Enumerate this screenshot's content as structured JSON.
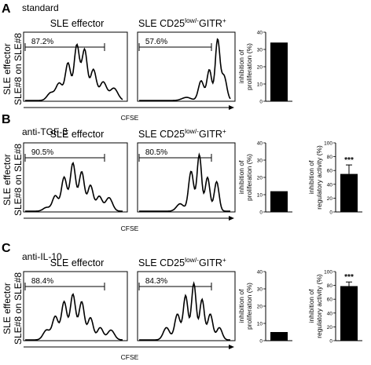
{
  "figure": {
    "x_axis_label": "CFSE",
    "side_label_line1": "SLE effector",
    "side_label_line2": "SLE#8 on SLE#8",
    "col1_title": "SLE effector",
    "col2_title_base": "SLE CD25",
    "col2_title_sup": "low/-",
    "col2_title_tail": "GITR",
    "col2_title_sup2": "+",
    "bar1_ylabel_line1": "inhibition of",
    "bar1_ylabel_line2": "proliferation (%)",
    "bar2_ylabel_line1": "inhibition of",
    "bar2_ylabel_line2": "regulatory activity (%)"
  },
  "chart_data": [
    {
      "panel": "A",
      "condition": "standard",
      "histograms": [
        {
          "title": "SLE effector",
          "gate_percent": "87.2%"
        },
        {
          "title": "SLE CD25low/-GITR+",
          "gate_percent": "57.6%"
        }
      ],
      "bar_charts": [
        {
          "type": "bar",
          "ylabel": "inhibition of proliferation (%)",
          "ylim": [
            0,
            40
          ],
          "ticks": [
            "0",
            "10",
            "20",
            "30",
            "40"
          ],
          "values": [
            34
          ],
          "error": [
            0
          ],
          "significance": ""
        }
      ]
    },
    {
      "panel": "B",
      "condition": "anti-TGF-β",
      "histograms": [
        {
          "title": "SLE effector",
          "gate_percent": "90.5%"
        },
        {
          "title": "SLE CD25low/-GITR+",
          "gate_percent": "80.5%"
        }
      ],
      "bar_charts": [
        {
          "type": "bar",
          "ylabel": "inhibition of proliferation (%)",
          "ylim": [
            0,
            40
          ],
          "ticks": [
            "0",
            "10",
            "20",
            "30",
            "40"
          ],
          "values": [
            12
          ],
          "error": [
            0
          ],
          "significance": ""
        },
        {
          "type": "bar",
          "ylabel": "inhibition of regulatory activity (%)",
          "ylim": [
            0,
            100
          ],
          "ticks": [
            "0",
            "20",
            "40",
            "60",
            "80",
            "100"
          ],
          "values": [
            55
          ],
          "error": [
            13
          ],
          "significance": "***"
        }
      ]
    },
    {
      "panel": "C",
      "condition": "anti-IL-10",
      "histograms": [
        {
          "title": "SLE effector",
          "gate_percent": "88.4%"
        },
        {
          "title": "SLE CD25low/-GITR+",
          "gate_percent": "84.3%"
        }
      ],
      "bar_charts": [
        {
          "type": "bar",
          "ylabel": "inhibition of proliferation (%)",
          "ylim": [
            0,
            40
          ],
          "ticks": [
            "0",
            "10",
            "20",
            "30",
            "40"
          ],
          "values": [
            5
          ],
          "error": [
            0
          ],
          "significance": ""
        },
        {
          "type": "bar",
          "ylabel": "inhibition of regulatory activity (%)",
          "ylim": [
            0,
            100
          ],
          "ticks": [
            "0",
            "20",
            "40",
            "60",
            "80",
            "100"
          ],
          "values": [
            79
          ],
          "error": [
            6
          ],
          "significance": "***"
        }
      ]
    }
  ]
}
